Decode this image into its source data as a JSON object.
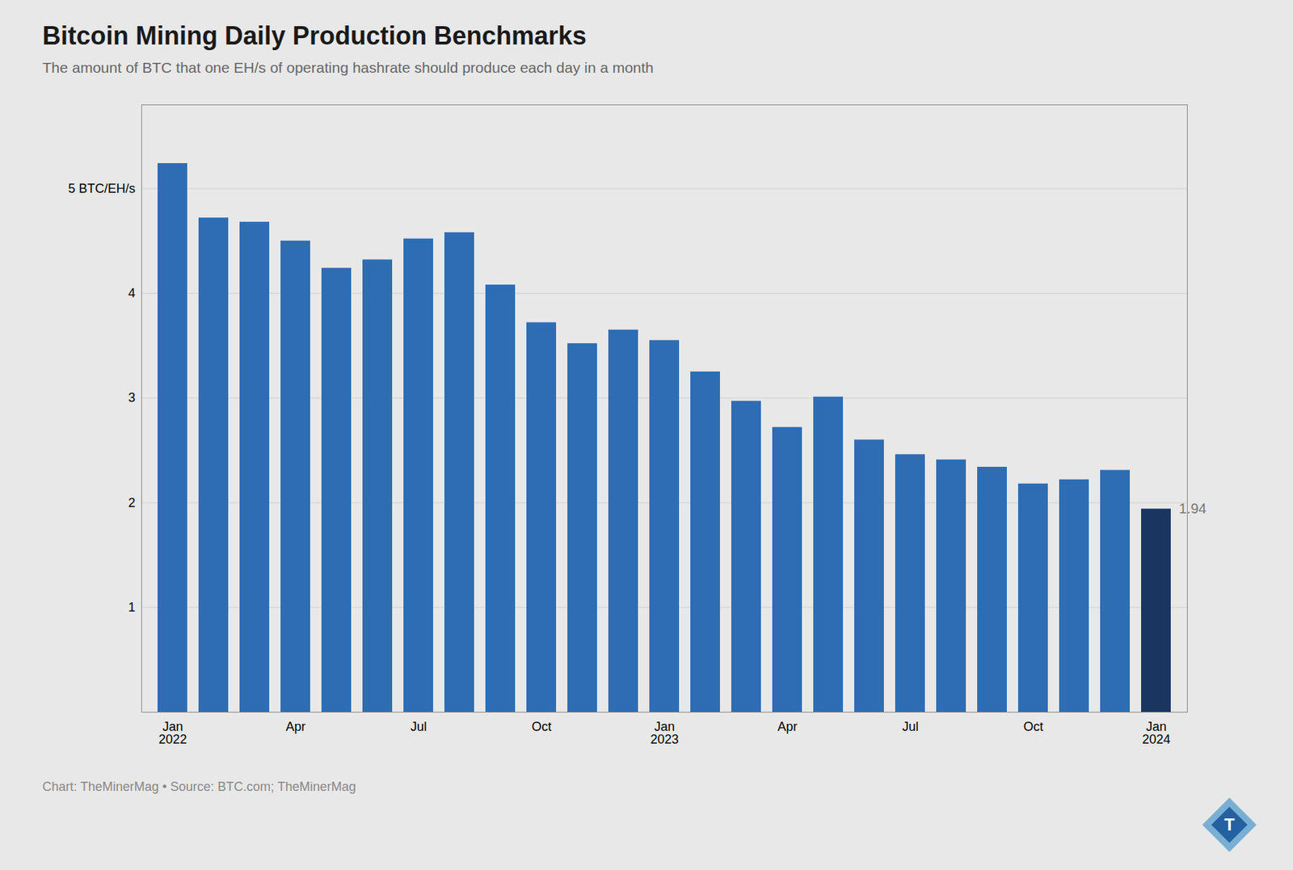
{
  "chart_data": {
    "type": "bar",
    "title": "Bitcoin Mining Daily Production Benchmarks",
    "subtitle": "The amount of BTC that one EH/s of operating hashrate should produce each day in a month",
    "caption": "Chart: TheMinerMag • Source: BTC.com; TheMinerMag",
    "logo": "T",
    "categories": [
      "Jan\n2022",
      null,
      null,
      "Apr",
      null,
      null,
      "Jul",
      null,
      null,
      "Oct",
      null,
      null,
      "Jan\n2023",
      null,
      null,
      "Apr",
      null,
      null,
      "Jul",
      null,
      null,
      "Oct",
      null,
      null,
      "Jan\n2024"
    ],
    "values": [
      5.24,
      4.72,
      4.68,
      4.5,
      4.24,
      4.32,
      4.52,
      4.58,
      4.08,
      3.72,
      3.52,
      3.65,
      3.55,
      3.25,
      2.97,
      2.72,
      3.01,
      2.6,
      2.46,
      2.41,
      2.34,
      2.18,
      2.22,
      2.31,
      1.94
    ],
    "colors": [
      "#2e6db4",
      "#2e6db4",
      "#2e6db4",
      "#2e6db4",
      "#2e6db4",
      "#2e6db4",
      "#2e6db4",
      "#2e6db4",
      "#2e6db4",
      "#2e6db4",
      "#2e6db4",
      "#2e6db4",
      "#2e6db4",
      "#2e6db4",
      "#2e6db4",
      "#2e6db4",
      "#2e6db4",
      "#2e6db4",
      "#2e6db4",
      "#2e6db4",
      "#2e6db4",
      "#2e6db4",
      "#2e6db4",
      "#2e6db4",
      "#1a3560"
    ],
    "annotations": [
      {
        "text": "1.94",
        "at": 24,
        "value": 1.94
      }
    ],
    "ylim": [
      0,
      5.8
    ],
    "yticks": [
      1,
      2,
      3,
      4,
      {
        "value": 5,
        "label": "5 BTC/EH/s"
      }
    ],
    "grid": true
  }
}
